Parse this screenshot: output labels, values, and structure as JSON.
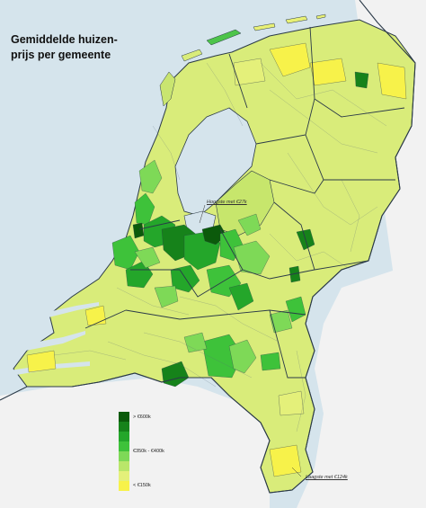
{
  "title": {
    "line1": "Gemiddelde huizen-",
    "line2": "prijs per gemeente"
  },
  "legend": {
    "top_label": "> €600k",
    "mid_label": "€350k - €400k",
    "bottom_label": "< €150k",
    "colors": [
      "#0b5a0b",
      "#16821a",
      "#24a62a",
      "#3ec23a",
      "#7ed957",
      "#b9e66a",
      "#e4f07a",
      "#f7f24a"
    ]
  },
  "annotations": {
    "north": "Hoogste met €27k",
    "south": "Laagste met €124k"
  },
  "colors": {
    "sea": "#d5e4ec",
    "foreign": "#f2f2f2",
    "border": "#2b3a48"
  }
}
